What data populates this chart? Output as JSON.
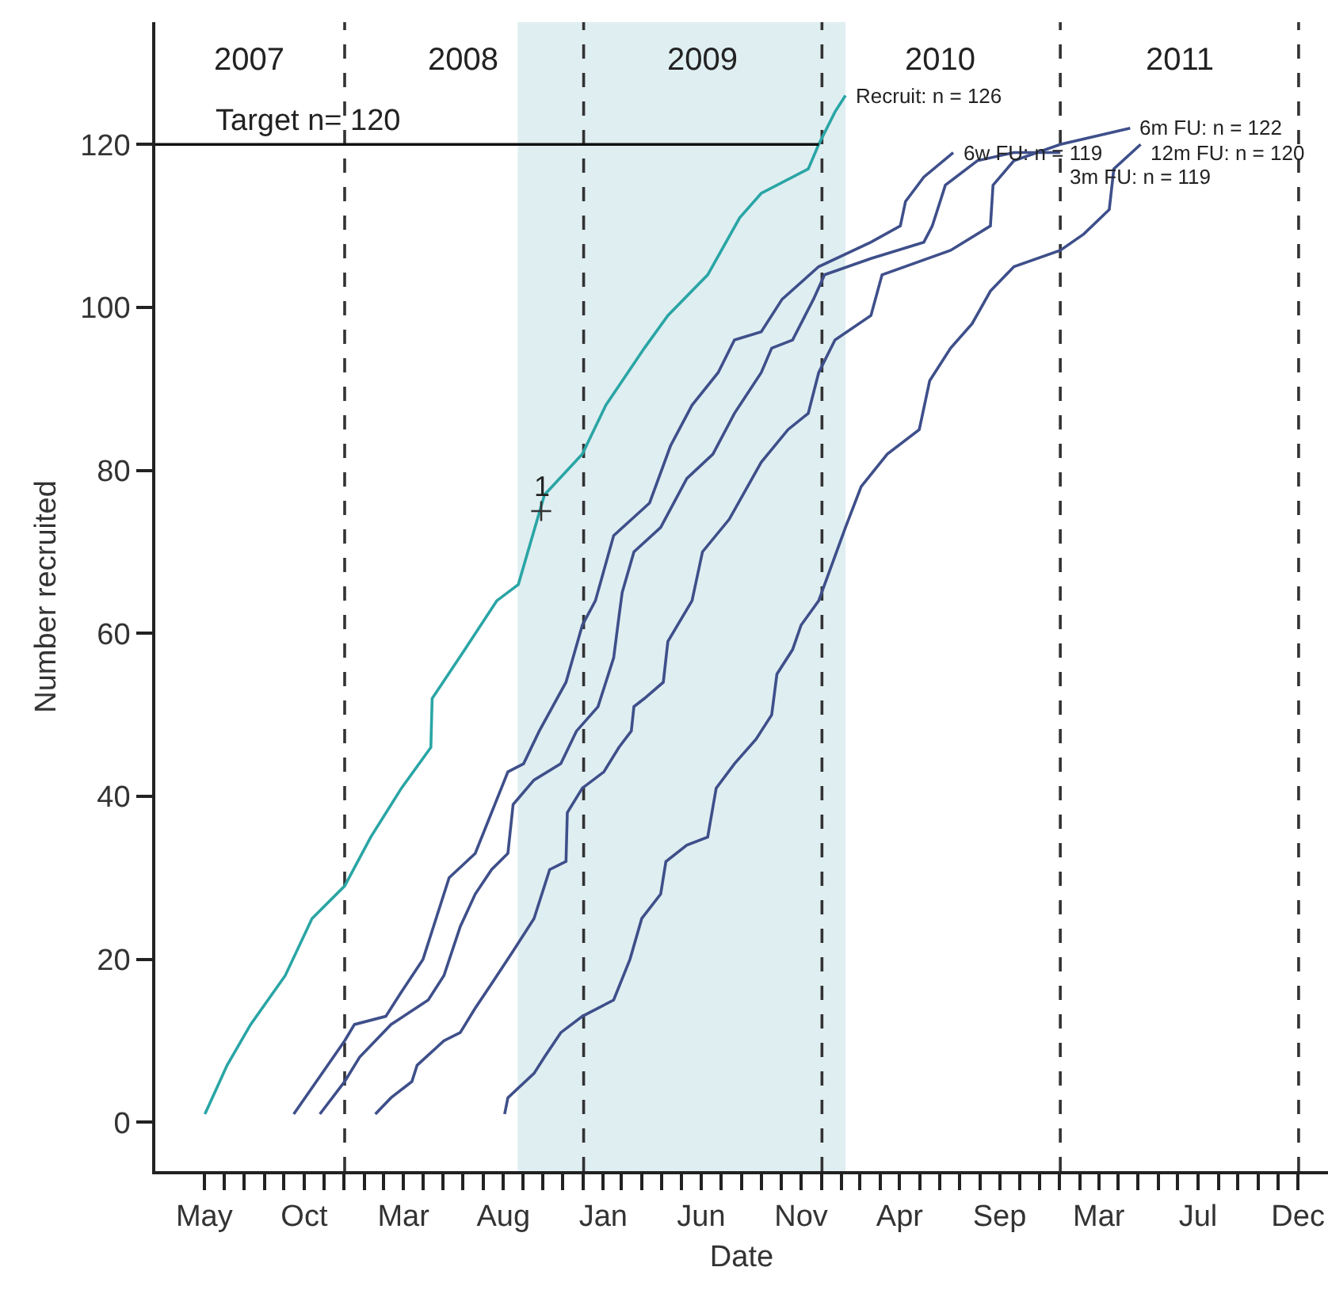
{
  "chart_data": {
    "type": "line",
    "xlabel": "Date",
    "ylabel": "Number recruited",
    "xlim": [
      "2007-03-17",
      "2012-02-15"
    ],
    "ylim": [
      -6,
      135
    ],
    "yticks": [
      0,
      20,
      40,
      60,
      80,
      100,
      120
    ],
    "xticks": [
      {
        "value": "2007-05-31",
        "label": "May"
      },
      {
        "value": "2007-06-30",
        "label": null
      },
      {
        "value": "2007-07-31",
        "label": null
      },
      {
        "value": "2007-08-31",
        "label": null
      },
      {
        "value": "2007-09-30",
        "label": null
      },
      {
        "value": "2007-10-31",
        "label": "Oct"
      },
      {
        "value": "2007-11-30",
        "label": null
      },
      {
        "value": "2007-12-31",
        "label": null
      },
      {
        "value": "2008-01-31",
        "label": null
      },
      {
        "value": "2008-02-29",
        "label": null
      },
      {
        "value": "2008-03-31",
        "label": "Mar"
      },
      {
        "value": "2008-04-30",
        "label": null
      },
      {
        "value": "2008-05-31",
        "label": null
      },
      {
        "value": "2008-06-30",
        "label": null
      },
      {
        "value": "2008-07-31",
        "label": null
      },
      {
        "value": "2008-08-31",
        "label": "Aug"
      },
      {
        "value": "2008-09-30",
        "label": null
      },
      {
        "value": "2008-10-31",
        "label": null
      },
      {
        "value": "2008-11-30",
        "label": null
      },
      {
        "value": "2008-12-31",
        "label": null
      },
      {
        "value": "2009-01-31",
        "label": "Jan"
      },
      {
        "value": "2009-02-28",
        "label": null
      },
      {
        "value": "2009-03-31",
        "label": null
      },
      {
        "value": "2009-04-30",
        "label": null
      },
      {
        "value": "2009-05-31",
        "label": null
      },
      {
        "value": "2009-06-30",
        "label": "Jun"
      },
      {
        "value": "2009-07-31",
        "label": null
      },
      {
        "value": "2009-08-31",
        "label": null
      },
      {
        "value": "2009-09-30",
        "label": null
      },
      {
        "value": "2009-10-31",
        "label": null
      },
      {
        "value": "2009-11-30",
        "label": "Nov"
      },
      {
        "value": "2009-12-31",
        "label": null
      },
      {
        "value": "2010-01-31",
        "label": null
      },
      {
        "value": "2010-02-28",
        "label": null
      },
      {
        "value": "2010-03-31",
        "label": null
      },
      {
        "value": "2010-04-30",
        "label": "Apr"
      },
      {
        "value": "2010-05-31",
        "label": null
      },
      {
        "value": "2010-06-30",
        "label": null
      },
      {
        "value": "2010-07-31",
        "label": null
      },
      {
        "value": "2010-08-31",
        "label": null
      },
      {
        "value": "2010-09-30",
        "label": "Sep"
      },
      {
        "value": "2010-10-31",
        "label": null
      },
      {
        "value": "2010-11-30",
        "label": null
      },
      {
        "value": "2010-12-31",
        "label": null
      },
      {
        "value": "2011-01-31",
        "label": null
      },
      {
        "value": "2011-03-01",
        "label": "Mar"
      },
      {
        "value": "2011-03-31",
        "label": null
      },
      {
        "value": "2011-04-30",
        "label": null
      },
      {
        "value": "2011-05-31",
        "label": null
      },
      {
        "value": "2011-06-30",
        "label": null
      },
      {
        "value": "2011-07-31",
        "label": "Jul"
      },
      {
        "value": "2011-08-31",
        "label": null
      },
      {
        "value": "2011-09-30",
        "label": null
      },
      {
        "value": "2011-10-31",
        "label": null
      },
      {
        "value": "2011-11-30",
        "label": null
      },
      {
        "value": "2011-12-31",
        "label": "Dec"
      }
    ],
    "grid": false,
    "line_style": "solid",
    "series": [
      {
        "color": "#2aa5a5",
        "x": [
          "2007-06-01",
          "2007-07-05",
          "2007-08-10",
          "2007-10-02",
          "2007-11-12",
          "2008-01-01",
          "2008-02-10",
          "2008-03-28",
          "2008-05-12",
          "2008-05-14",
          "2008-07-03",
          "2008-08-21",
          "2008-09-23",
          "2008-11-02",
          "2008-12-30",
          "2009-02-04",
          "2009-04-04",
          "2009-05-10",
          "2009-07-10",
          "2009-08-28",
          "2009-09-30",
          "2009-12-11",
          "2009-12-27",
          "2010-01-21",
          "2010-02-06"
        ],
        "values": [
          1,
          7,
          12,
          18,
          25,
          29,
          35,
          41,
          46,
          52,
          58,
          64,
          66,
          77,
          82,
          88,
          95,
          99,
          104,
          111,
          114,
          117,
          120,
          124,
          126
        ]
      },
      {
        "color": "#3e4f8a",
        "x": [
          "2007-10-15",
          "2008-01-01",
          "2008-01-16",
          "2008-03-04",
          "2008-03-28",
          "2008-04-30",
          "2008-05-16",
          "2008-06-09",
          "2008-07-19",
          "2008-08-13",
          "2008-09-07",
          "2008-10-01",
          "2008-10-25",
          "2008-12-05",
          "2008-12-30",
          "2009-01-19",
          "2009-02-16",
          "2009-04-12",
          "2009-05-14",
          "2009-06-16",
          "2009-07-26",
          "2009-08-20",
          "2009-09-30",
          "2009-11-01",
          "2009-12-27",
          "2010-03-17",
          "2010-05-01",
          "2010-05-09",
          "2010-06-06",
          "2010-07-21"
        ],
        "values": [
          1,
          10,
          12,
          13,
          16,
          20,
          24,
          30,
          33,
          38,
          43,
          44,
          48,
          54,
          61,
          64,
          72,
          76,
          83,
          88,
          92,
          96,
          97,
          101,
          105,
          108,
          110,
          113,
          116,
          119
        ]
      },
      {
        "color": "#3e4f8a",
        "x": [
          "2007-11-24",
          "2008-01-01",
          "2008-01-24",
          "2008-02-17",
          "2008-03-12",
          "2008-05-08",
          "2008-06-01",
          "2008-06-26",
          "2008-07-19",
          "2008-08-13",
          "2008-09-07",
          "2008-09-15",
          "2008-10-17",
          "2008-11-27",
          "2008-12-21",
          "2009-01-23",
          "2009-02-16",
          "2009-02-24",
          "2009-03-01",
          "2009-03-19",
          "2009-04-29",
          "2009-06-08",
          "2009-07-18",
          "2009-08-20",
          "2009-09-30",
          "2009-10-16",
          "2009-11-17",
          "2009-12-19",
          "2010-01-05",
          "2010-03-17",
          "2010-06-06",
          "2010-06-19",
          "2010-07-09",
          "2010-08-27",
          "2010-10-22",
          "2011-01-01"
        ],
        "values": [
          1,
          5,
          8,
          10,
          12,
          15,
          18,
          24,
          28,
          31,
          33,
          39,
          42,
          44,
          48,
          51,
          57,
          62,
          65,
          70,
          73,
          79,
          82,
          87,
          92,
          95,
          96,
          101,
          104,
          106,
          108,
          110,
          115,
          118,
          119,
          119
        ]
      },
      {
        "color": "#3e4f8a",
        "x": [
          "2008-02-17",
          "2008-03-12",
          "2008-04-13",
          "2008-04-21",
          "2008-06-01",
          "2008-06-26",
          "2008-07-19",
          "2008-08-13",
          "2008-09-15",
          "2008-10-17",
          "2008-11-10",
          "2008-12-05",
          "2008-12-07",
          "2008-12-30",
          "2009-02-01",
          "2009-02-24",
          "2009-03-15",
          "2009-03-19",
          "2009-04-04",
          "2009-05-03",
          "2009-05-10",
          "2009-06-16",
          "2009-07-02",
          "2009-08-12",
          "2009-09-30",
          "2009-11-10",
          "2009-12-11",
          "2009-12-27",
          "2010-01-21",
          "2010-03-17",
          "2010-04-03",
          "2010-07-17",
          "2010-09-16",
          "2010-09-20",
          "2010-10-22",
          "2011-01-01",
          "2011-04-18"
        ],
        "values": [
          1,
          3,
          5,
          7,
          10,
          11,
          14,
          17,
          21,
          25,
          31,
          32,
          38,
          41,
          43,
          46,
          48,
          51,
          52,
          54,
          59,
          64,
          70,
          74,
          81,
          85,
          87,
          92,
          96,
          99,
          104,
          107,
          110,
          115,
          118,
          120,
          122
        ]
      },
      {
        "color": "#3e4f8a",
        "x": [
          "2008-09-02",
          "2008-09-07",
          "2008-10-17",
          "2008-11-02",
          "2008-11-27",
          "2008-12-30",
          "2009-02-16",
          "2009-03-13",
          "2009-03-31",
          "2009-04-29",
          "2009-05-07",
          "2009-06-08",
          "2009-07-10",
          "2009-07-23",
          "2009-08-20",
          "2009-09-22",
          "2009-10-16",
          "2009-10-24",
          "2009-11-17",
          "2009-11-30",
          "2009-12-27",
          "2010-02-06",
          "2010-03-02",
          "2010-04-11",
          "2010-05-30",
          "2010-06-15",
          "2010-07-17",
          "2010-08-19",
          "2010-09-16",
          "2010-10-22",
          "2011-01-01",
          "2011-02-06",
          "2011-03-17",
          "2011-03-24",
          "2011-05-04"
        ],
        "values": [
          1,
          3,
          6,
          8,
          11,
          13,
          15,
          20,
          25,
          28,
          32,
          34,
          35,
          41,
          44,
          47,
          50,
          55,
          58,
          61,
          64,
          73,
          78,
          82,
          85,
          91,
          95,
          98,
          102,
          105,
          107,
          109,
          112,
          117,
          120
        ]
      },
      {
        "type": "scatter",
        "marker": "cross",
        "color": "#333333",
        "x": [
          "2008-10-28"
        ],
        "values": [
          75
        ]
      }
    ],
    "ref_lines": [
      {
        "axis": "y",
        "value": 120,
        "label": "Target n= 120",
        "color": "#111111",
        "line_style": "solid"
      },
      {
        "axis": "x",
        "value": "2008-01-01",
        "color": "#333333",
        "line_style": "dashed"
      },
      {
        "axis": "x",
        "value": "2009-01-01",
        "color": "#333333",
        "line_style": "dashed"
      },
      {
        "axis": "x",
        "value": "2010-01-01",
        "color": "#333333",
        "line_style": "dashed"
      },
      {
        "axis": "x",
        "value": "2011-01-01",
        "color": "#333333",
        "line_style": "dashed"
      },
      {
        "axis": "x",
        "value": "2012-01-01",
        "color": "#333333",
        "line_style": "dashed"
      }
    ],
    "bands": [
      {
        "axis": "x",
        "from": "2008-09-22",
        "to": "2010-02-06",
        "color": "#dfeef1"
      }
    ],
    "annotations": [
      "2007",
      "2008",
      "2009",
      "2010",
      "2011",
      {
        "text": "1",
        "x": "2008-10-28",
        "y": 75
      },
      {
        "text": "Recruit: n = 126",
        "x": "2010-02-06",
        "y": 126
      },
      {
        "text": "6w FU: n = 119",
        "x": "2010-07-21",
        "y": 119
      },
      {
        "text": "6m FU: n = 122",
        "x": "2011-04-18",
        "y": 122
      },
      {
        "text": "3m FU: n = 119",
        "x": "2011-01-01",
        "y": 119
      },
      {
        "text": "12m FU: n = 120",
        "x": "2011-05-04",
        "y": 120
      }
    ]
  }
}
